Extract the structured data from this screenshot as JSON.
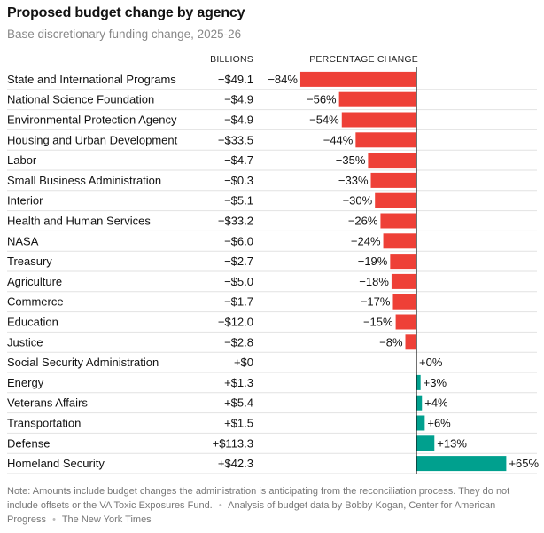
{
  "chart_data": {
    "type": "bar",
    "title": "Proposed budget change by agency",
    "subtitle": "Base discretionary funding change, 2025-26",
    "column_headers": {
      "billions": "BILLIONS",
      "percentage": "PERCENTAGE CHANGE"
    },
    "rows": [
      {
        "agency": "State and International Programs",
        "billions": "−$49.1",
        "pct": -84,
        "pct_label": "−84%"
      },
      {
        "agency": "National Science Foundation",
        "billions": "−$4.9",
        "pct": -56,
        "pct_label": "−56%"
      },
      {
        "agency": "Environmental Protection Agency",
        "billions": "−$4.9",
        "pct": -54,
        "pct_label": "−54%"
      },
      {
        "agency": "Housing and Urban Development",
        "billions": "−$33.5",
        "pct": -44,
        "pct_label": "−44%"
      },
      {
        "agency": "Labor",
        "billions": "−$4.7",
        "pct": -35,
        "pct_label": "−35%"
      },
      {
        "agency": "Small Business Administration",
        "billions": "−$0.3",
        "pct": -33,
        "pct_label": "−33%"
      },
      {
        "agency": "Interior",
        "billions": "−$5.1",
        "pct": -30,
        "pct_label": "−30%"
      },
      {
        "agency": "Health and Human Services",
        "billions": "−$33.2",
        "pct": -26,
        "pct_label": "−26%"
      },
      {
        "agency": "NASA",
        "billions": "−$6.0",
        "pct": -24,
        "pct_label": "−24%"
      },
      {
        "agency": "Treasury",
        "billions": "−$2.7",
        "pct": -19,
        "pct_label": "−19%"
      },
      {
        "agency": "Agriculture",
        "billions": "−$5.0",
        "pct": -18,
        "pct_label": "−18%"
      },
      {
        "agency": "Commerce",
        "billions": "−$1.7",
        "pct": -17,
        "pct_label": "−17%"
      },
      {
        "agency": "Education",
        "billions": "−$12.0",
        "pct": -15,
        "pct_label": "−15%"
      },
      {
        "agency": "Justice",
        "billions": "−$2.8",
        "pct": -8,
        "pct_label": "−8%"
      },
      {
        "agency": "Social Security Administration",
        "billions": "+$0",
        "pct": 0,
        "pct_label": "+0%"
      },
      {
        "agency": "Energy",
        "billions": "+$1.3",
        "pct": 3,
        "pct_label": "+3%"
      },
      {
        "agency": "Veterans Affairs",
        "billions": "+$5.4",
        "pct": 4,
        "pct_label": "+4%"
      },
      {
        "agency": "Transportation",
        "billions": "+$1.5",
        "pct": 6,
        "pct_label": "+6%"
      },
      {
        "agency": "Defense",
        "billions": "+$113.3",
        "pct": 13,
        "pct_label": "+13%"
      },
      {
        "agency": "Homeland Security",
        "billions": "+$42.3",
        "pct": 65,
        "pct_label": "+65%"
      }
    ],
    "colors": {
      "negative": "#ee4037",
      "positive": "#00a08e",
      "axis": "#121212",
      "row_line": "#e2e2e2"
    },
    "xlim": [
      -84,
      65
    ],
    "grid": false
  },
  "footer": {
    "note": "Note: Amounts include budget changes the administration is anticipating from the reconciliation process. They do not include offsets or the VA Toxic Exposures Fund.",
    "source": "Analysis of budget data by Bobby Kogan, Center for American Progress",
    "credit": "The New York Times",
    "separator": "•"
  }
}
